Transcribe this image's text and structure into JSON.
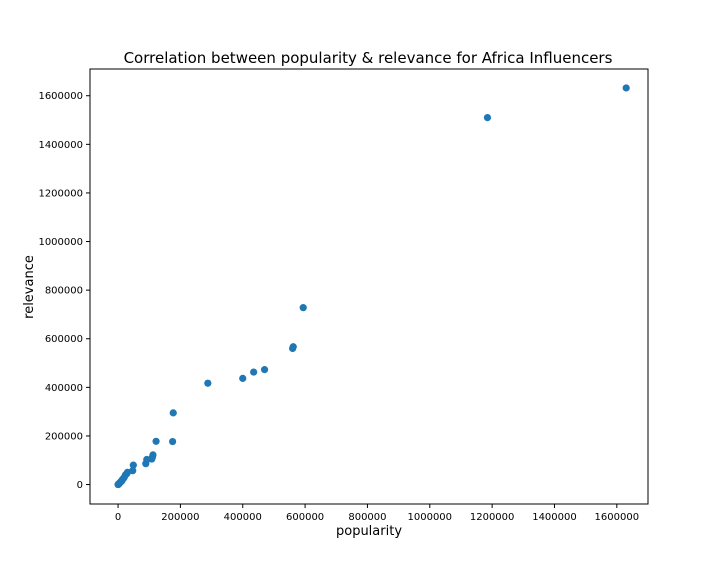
{
  "chart_data": {
    "type": "scatter",
    "title": "Correlation between popularity & relevance for Africa Influencers",
    "xlabel": "popularity",
    "ylabel": "relevance",
    "xlim": [
      -90000,
      1700000
    ],
    "ylim": [
      -80000,
      1710000
    ],
    "xticks": [
      0,
      200000,
      400000,
      600000,
      800000,
      1000000,
      1200000,
      1400000,
      1600000
    ],
    "xtick_labels": [
      "0",
      "200000",
      "400000",
      "600000",
      "800000",
      "1000000",
      "1200000",
      "1400000",
      "1600000"
    ],
    "yticks": [
      0,
      200000,
      400000,
      600000,
      800000,
      1000000,
      1200000,
      1400000,
      1600000
    ],
    "ytick_labels": [
      "0",
      "200000",
      "400000",
      "600000",
      "800000",
      "1000000",
      "1200000",
      "1400000",
      "1600000"
    ],
    "grid": false,
    "marker_color": "#1f77b4",
    "points": [
      {
        "x": 1630000,
        "y": 1632000
      },
      {
        "x": 1185000,
        "y": 1510000
      },
      {
        "x": 594000,
        "y": 728000
      },
      {
        "x": 562000,
        "y": 567000
      },
      {
        "x": 560000,
        "y": 560000
      },
      {
        "x": 470000,
        "y": 473000
      },
      {
        "x": 435000,
        "y": 463000
      },
      {
        "x": 400000,
        "y": 437000
      },
      {
        "x": 288000,
        "y": 417000
      },
      {
        "x": 177000,
        "y": 295000
      },
      {
        "x": 175000,
        "y": 177000
      },
      {
        "x": 122000,
        "y": 178000
      },
      {
        "x": 112000,
        "y": 122000
      },
      {
        "x": 110000,
        "y": 112000
      },
      {
        "x": 108000,
        "y": 105000
      },
      {
        "x": 92000,
        "y": 103000
      },
      {
        "x": 89000,
        "y": 86000
      },
      {
        "x": 49000,
        "y": 80000
      },
      {
        "x": 47000,
        "y": 57000
      },
      {
        "x": 30000,
        "y": 50000
      },
      {
        "x": 28000,
        "y": 45000
      },
      {
        "x": 24000,
        "y": 40000
      },
      {
        "x": 20000,
        "y": 30000
      },
      {
        "x": 17000,
        "y": 25000
      },
      {
        "x": 14000,
        "y": 20000
      },
      {
        "x": 12000,
        "y": 15000
      },
      {
        "x": 9000,
        "y": 12000
      },
      {
        "x": 7000,
        "y": 9000
      },
      {
        "x": 5000,
        "y": 6000
      },
      {
        "x": 3000,
        "y": 4000
      },
      {
        "x": 2000,
        "y": 2000
      },
      {
        "x": 1000,
        "y": 1000
      },
      {
        "x": 500,
        "y": 500
      },
      {
        "x": 0,
        "y": 0
      }
    ]
  }
}
